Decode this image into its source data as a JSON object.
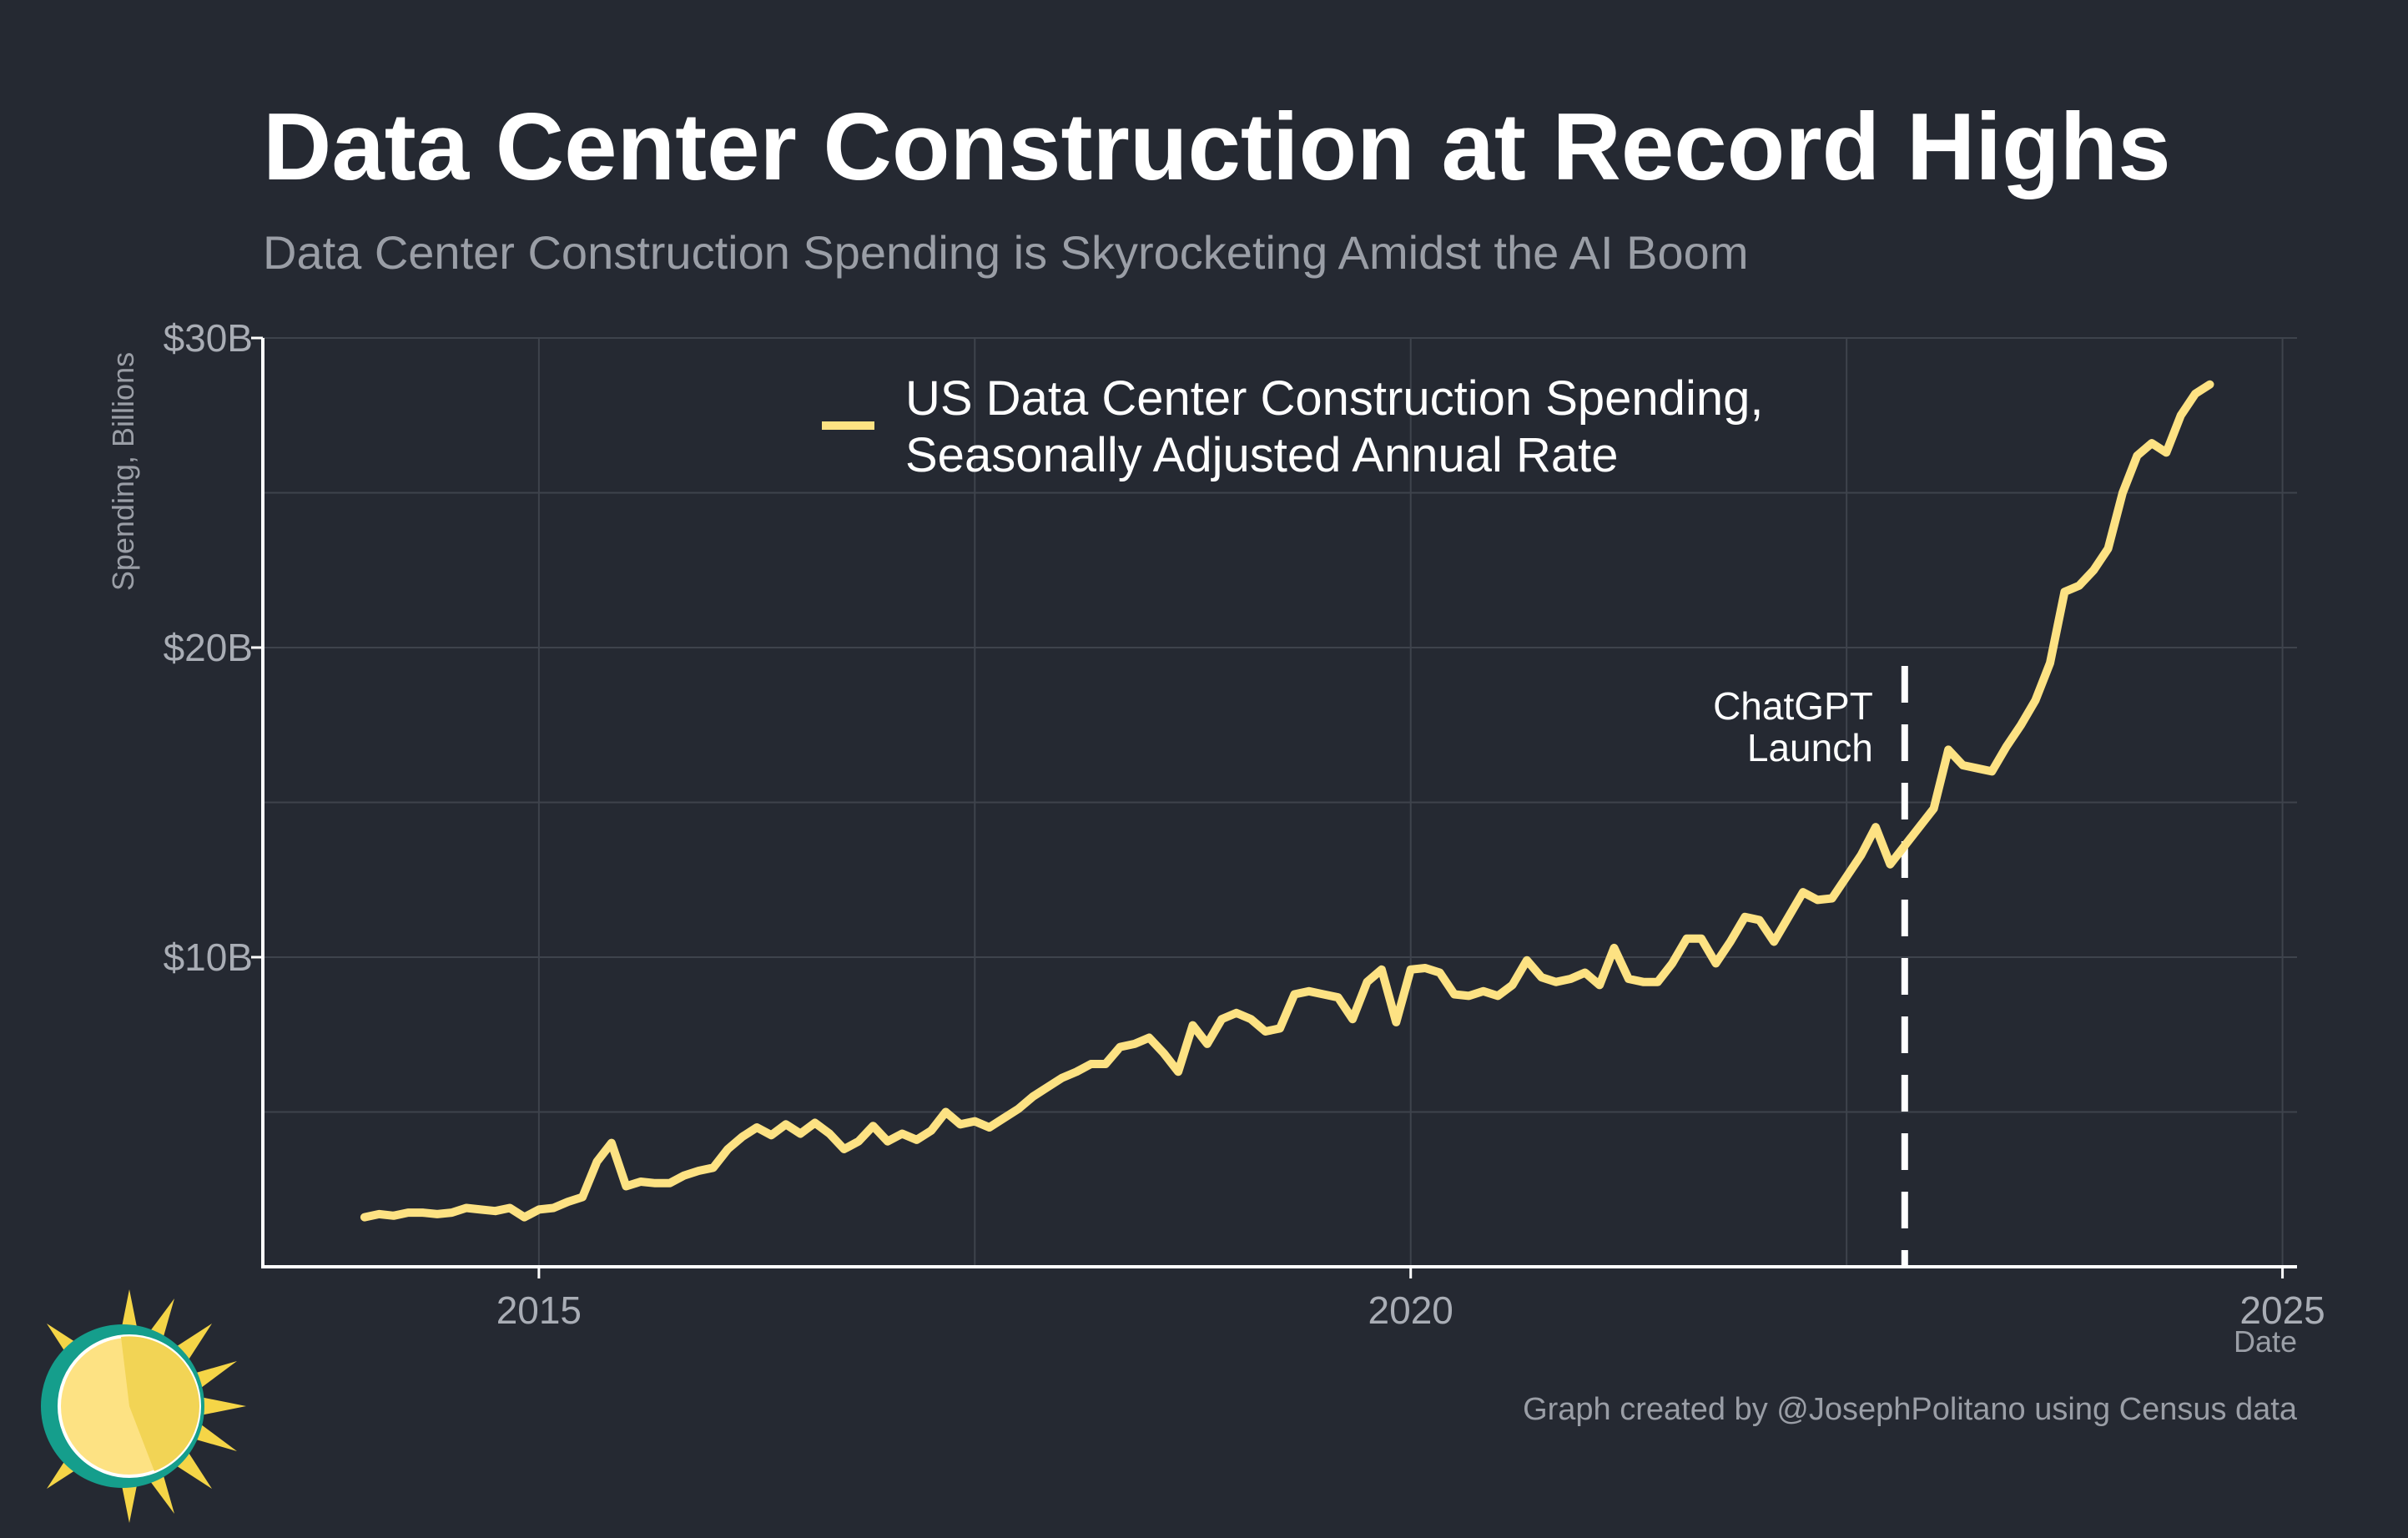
{
  "colors": {
    "background": "#252932",
    "grid": "#3e434c",
    "axis": "#ffffff",
    "series": "#fde283",
    "annotation_line": "#ffffff"
  },
  "logo": {
    "icon": "sun-logo-icon"
  },
  "credit": "Graph created by @JosephPolitano using Census data",
  "chart_data": {
    "type": "line",
    "title": "Data Center Construction at Record Highs",
    "subtitle": "Data Center Construction Spending is Skyrocketing Amidst the AI Boom",
    "xlabel": "Date",
    "ylabel": "Spending, Billions",
    "x_ticks": [
      "2015",
      "2020",
      "2025"
    ],
    "x_tick_dates": [
      "2015-01",
      "2020-01",
      "2025-01"
    ],
    "y_ticks": [
      "$10B",
      "$20B",
      "$30B"
    ],
    "y_tick_values": [
      10,
      20,
      30
    ],
    "xlim": [
      "2013-06",
      "2025-02"
    ],
    "ylim": [
      0,
      30
    ],
    "grid": true,
    "legend": {
      "position": "top-center"
    },
    "series": [
      {
        "name": "US Data Center Construction Spending, Seasonally Adjusted Annual Rate",
        "name_lines": [
          "US Data Center Construction Spending,",
          "Seasonally Adjusted Annual Rate"
        ],
        "x": [
          "2014-01",
          "2014-02",
          "2014-03",
          "2014-04",
          "2014-05",
          "2014-06",
          "2014-07",
          "2014-08",
          "2014-09",
          "2014-10",
          "2014-11",
          "2014-12",
          "2015-01",
          "2015-02",
          "2015-03",
          "2015-04",
          "2015-05",
          "2015-06",
          "2015-07",
          "2015-08",
          "2015-09",
          "2015-10",
          "2015-11",
          "2015-12",
          "2016-01",
          "2016-02",
          "2016-03",
          "2016-04",
          "2016-05",
          "2016-06",
          "2016-07",
          "2016-08",
          "2016-09",
          "2016-10",
          "2016-11",
          "2016-12",
          "2017-01",
          "2017-02",
          "2017-03",
          "2017-04",
          "2017-05",
          "2017-06",
          "2017-07",
          "2017-08",
          "2017-09",
          "2017-10",
          "2017-11",
          "2017-12",
          "2018-01",
          "2018-02",
          "2018-03",
          "2018-04",
          "2018-05",
          "2018-06",
          "2018-07",
          "2018-08",
          "2018-09",
          "2018-10",
          "2018-11",
          "2018-12",
          "2019-01",
          "2019-02",
          "2019-03",
          "2019-04",
          "2019-05",
          "2019-06",
          "2019-07",
          "2019-08",
          "2019-09",
          "2019-10",
          "2019-11",
          "2019-12",
          "2020-01",
          "2020-02",
          "2020-03",
          "2020-04",
          "2020-05",
          "2020-06",
          "2020-07",
          "2020-08",
          "2020-09",
          "2020-10",
          "2020-11",
          "2020-12",
          "2021-01",
          "2021-02",
          "2021-03",
          "2021-04",
          "2021-05",
          "2021-06",
          "2021-07",
          "2021-08",
          "2021-09",
          "2021-10",
          "2021-11",
          "2021-12",
          "2022-01",
          "2022-02",
          "2022-03",
          "2022-04",
          "2022-05",
          "2022-06",
          "2022-07",
          "2022-08",
          "2022-09",
          "2022-10",
          "2022-11",
          "2022-12",
          "2023-01",
          "2023-02",
          "2023-03",
          "2023-04",
          "2023-05",
          "2023-06",
          "2023-07",
          "2023-08",
          "2023-09",
          "2023-10",
          "2023-11",
          "2023-12",
          "2024-01",
          "2024-02",
          "2024-03",
          "2024-04",
          "2024-05",
          "2024-06",
          "2024-07",
          "2024-08"
        ],
        "values": [
          1.6,
          1.7,
          1.65,
          1.75,
          1.75,
          1.7,
          1.75,
          1.9,
          1.85,
          1.8,
          1.9,
          1.6,
          1.85,
          1.9,
          2.1,
          2.25,
          3.4,
          4.0,
          2.6,
          2.75,
          2.7,
          2.7,
          2.95,
          3.1,
          3.2,
          3.8,
          4.2,
          4.5,
          4.25,
          4.6,
          4.3,
          4.65,
          4.3,
          3.8,
          4.05,
          4.55,
          4.05,
          4.3,
          4.1,
          4.4,
          5.0,
          4.6,
          4.7,
          4.5,
          4.8,
          5.1,
          5.5,
          5.8,
          6.1,
          6.3,
          6.55,
          6.55,
          7.1,
          7.2,
          7.4,
          6.9,
          6.3,
          7.8,
          7.2,
          8.0,
          8.2,
          8.0,
          7.6,
          7.7,
          8.8,
          8.9,
          8.8,
          8.7,
          8.0,
          9.2,
          9.6,
          7.9,
          9.6,
          9.65,
          9.5,
          8.8,
          8.75,
          8.9,
          8.75,
          9.1,
          9.9,
          9.35,
          9.2,
          9.3,
          9.5,
          9.1,
          10.3,
          9.3,
          9.2,
          9.2,
          9.8,
          10.6,
          10.6,
          9.8,
          10.5,
          11.3,
          11.2,
          10.5,
          11.3,
          12.1,
          11.85,
          11.9,
          12.6,
          13.3,
          14.2,
          13.0,
          13.6,
          14.2,
          14.8,
          16.7,
          16.2,
          16.1,
          16.0,
          16.8,
          17.5,
          18.3,
          19.5,
          21.8,
          22.0,
          22.5,
          23.2,
          25.0,
          26.2,
          26.6,
          26.3,
          27.5,
          28.2,
          28.5
        ]
      }
    ],
    "annotations": [
      {
        "x": "2022-11",
        "type": "vline",
        "style": "dashed",
        "label_lines": [
          "ChatGPT",
          "Launch"
        ]
      }
    ]
  }
}
